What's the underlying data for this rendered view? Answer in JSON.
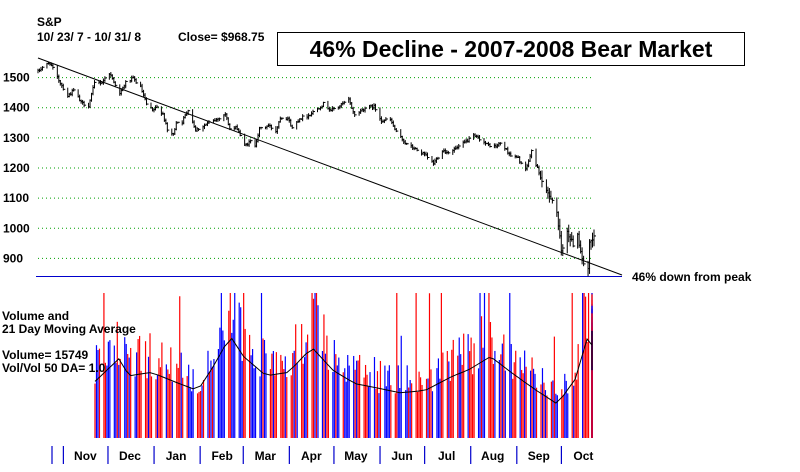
{
  "chart_data": [
    {
      "type": "line",
      "title": "46% Decline - 2007-2008 Bear Market",
      "ticker": "S&P",
      "date_range": "10/ 23/ 7 -  10/ 31/ 8",
      "close_text": "Close= $968.75",
      "y_ticks": [
        900,
        1000,
        1100,
        1200,
        1300,
        1400,
        1500
      ],
      "ylim": [
        835,
        1575
      ],
      "grid": "horizontal dotted",
      "series": [
        {
          "points": [
            [
              "2007-10-23",
              1520
            ],
            [
              "2007-10-26",
              1535
            ],
            [
              "2007-10-31",
              1549
            ],
            [
              "2007-11-05",
              1500
            ],
            [
              "2007-11-08",
              1474
            ],
            [
              "2007-11-12",
              1439
            ],
            [
              "2007-11-16",
              1458
            ],
            [
              "2007-11-21",
              1416
            ],
            [
              "2007-11-26",
              1407
            ],
            [
              "2007-11-30",
              1481
            ],
            [
              "2007-12-05",
              1485
            ],
            [
              "2007-12-10",
              1515
            ],
            [
              "2007-12-13",
              1488
            ],
            [
              "2007-12-17",
              1445
            ],
            [
              "2007-12-21",
              1484
            ],
            [
              "2007-12-26",
              1497
            ],
            [
              "2007-12-31",
              1468
            ],
            [
              "2008-01-04",
              1411
            ],
            [
              "2008-01-08",
              1390
            ],
            [
              "2008-01-11",
              1401
            ],
            [
              "2008-01-15",
              1380
            ],
            [
              "2008-01-18",
              1325
            ],
            [
              "2008-01-22",
              1310
            ],
            [
              "2008-01-24",
              1353
            ],
            [
              "2008-01-28",
              1353
            ],
            [
              "2008-02-01",
              1395
            ],
            [
              "2008-02-06",
              1326
            ],
            [
              "2008-02-11",
              1339
            ],
            [
              "2008-02-14",
              1348
            ],
            [
              "2008-02-20",
              1360
            ],
            [
              "2008-02-26",
              1380
            ],
            [
              "2008-02-29",
              1330
            ],
            [
              "2008-03-05",
              1333
            ],
            [
              "2008-03-10",
              1273
            ],
            [
              "2008-03-14",
              1288
            ],
            [
              "2008-03-17",
              1276
            ],
            [
              "2008-03-20",
              1329
            ],
            [
              "2008-03-26",
              1341
            ],
            [
              "2008-03-31",
              1323
            ],
            [
              "2008-04-03",
              1369
            ],
            [
              "2008-04-08",
              1366
            ],
            [
              "2008-04-11",
              1332
            ],
            [
              "2008-04-16",
              1365
            ],
            [
              "2008-04-22",
              1375
            ],
            [
              "2008-04-28",
              1397
            ],
            [
              "2008-05-02",
              1413
            ],
            [
              "2008-05-07",
              1392
            ],
            [
              "2008-05-12",
              1403
            ],
            [
              "2008-05-19",
              1426
            ],
            [
              "2008-05-23",
              1375
            ],
            [
              "2008-05-30",
              1400
            ],
            [
              "2008-06-05",
              1404
            ],
            [
              "2008-06-10",
              1358
            ],
            [
              "2008-06-16",
              1360
            ],
            [
              "2008-06-20",
              1318
            ],
            [
              "2008-06-27",
              1278
            ],
            [
              "2008-07-03",
              1262
            ],
            [
              "2008-07-09",
              1244
            ],
            [
              "2008-07-15",
              1215
            ],
            [
              "2008-07-21",
              1260
            ],
            [
              "2008-07-24",
              1252
            ],
            [
              "2008-07-31",
              1267
            ],
            [
              "2008-08-05",
              1284
            ],
            [
              "2008-08-11",
              1305
            ],
            [
              "2008-08-15",
              1298
            ],
            [
              "2008-08-20",
              1277
            ],
            [
              "2008-08-26",
              1271
            ],
            [
              "2008-08-29",
              1283
            ],
            [
              "2008-09-05",
              1242
            ],
            [
              "2008-09-10",
              1232
            ],
            [
              "2008-09-15",
              1192
            ],
            [
              "2008-09-19",
              1255
            ],
            [
              "2008-09-24",
              1185
            ],
            [
              "2008-09-29",
              1106
            ],
            [
              "2008-10-02",
              1114
            ],
            [
              "2008-10-06",
              1056
            ],
            [
              "2008-10-09",
              910
            ],
            [
              "2008-10-13",
              1003
            ],
            [
              "2008-10-16",
              946
            ],
            [
              "2008-10-20",
              985
            ],
            [
              "2008-10-24",
              876
            ],
            [
              "2008-10-27",
              848
            ],
            [
              "2008-10-28",
              940
            ],
            [
              "2008-10-30",
              954
            ],
            [
              "2008-10-31",
              968.75
            ]
          ]
        }
      ],
      "trendline": {
        "from": [
          "2007-10-23",
          1565
        ],
        "to": [
          "2008-10-31",
          895
        ]
      },
      "baseline": {
        "y": 840,
        "annotation": "46% down from peak"
      }
    },
    {
      "type": "bar",
      "title_lines": [
        "Volume and",
        "21 Day Moving Average"
      ],
      "volume_text": "Volume= 15749",
      "ratio_text": "Vol/Vol 50 DA= 1.0",
      "up_color": "#0000ff",
      "down_color": "#ff0000",
      "ma_color": "#000000",
      "months": [
        "Nov",
        "Dec",
        "Jan",
        "Feb",
        "Mar",
        "Apr",
        "May",
        "Jun",
        "Jul",
        "Aug",
        "Sep",
        "Oct"
      ],
      "month_starts": [
        "2007-11-01",
        "2007-12-01",
        "2008-01-01",
        "2008-02-01",
        "2008-03-01",
        "2008-04-01",
        "2008-05-01",
        "2008-06-01",
        "2008-07-01",
        "2008-08-01",
        "2008-09-01",
        "2008-10-01"
      ],
      "volume_level_by_date": [
        [
          "2007-10-23",
          0.5
        ],
        [
          "2007-11-08",
          0.7
        ],
        [
          "2007-11-15",
          0.55
        ],
        [
          "2007-11-30",
          0.58
        ],
        [
          "2007-12-15",
          0.5
        ],
        [
          "2007-12-31",
          0.42
        ],
        [
          "2008-01-10",
          0.62
        ],
        [
          "2008-01-22",
          0.9
        ],
        [
          "2008-01-31",
          0.72
        ],
        [
          "2008-02-15",
          0.55
        ],
        [
          "2008-03-01",
          0.58
        ],
        [
          "2008-03-17",
          0.8
        ],
        [
          "2008-03-31",
          0.6
        ],
        [
          "2008-04-15",
          0.48
        ],
        [
          "2008-05-01",
          0.44
        ],
        [
          "2008-05-15",
          0.4
        ],
        [
          "2008-06-01",
          0.42
        ],
        [
          "2008-06-20",
          0.55
        ],
        [
          "2008-06-30",
          0.6
        ],
        [
          "2008-07-15",
          0.72
        ],
        [
          "2008-07-31",
          0.56
        ],
        [
          "2008-08-15",
          0.42
        ],
        [
          "2008-08-29",
          0.3
        ],
        [
          "2008-09-10",
          0.52
        ],
        [
          "2008-09-19",
          0.92
        ],
        [
          "2008-09-30",
          0.65
        ],
        [
          "2008-10-10",
          0.98
        ],
        [
          "2008-10-20",
          0.72
        ],
        [
          "2008-10-31",
          0.6
        ]
      ]
    }
  ]
}
